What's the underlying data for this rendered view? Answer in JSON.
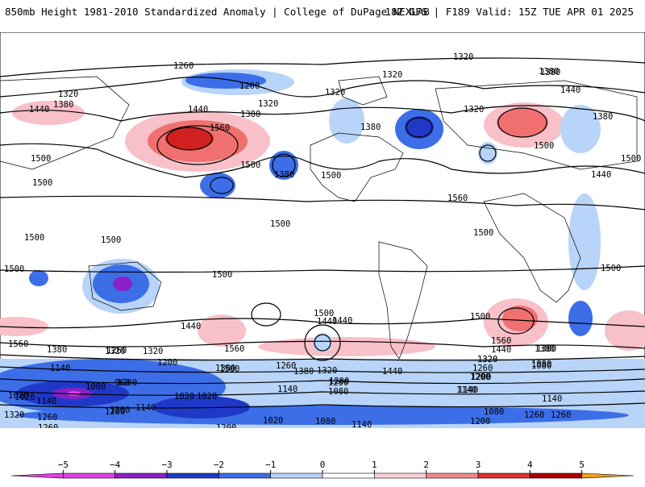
{
  "header": {
    "left": "850mb Height 1981-2010 Standardized Anomaly | College of DuPage NEXLAB",
    "right": "18Z GFS | F189 Valid: 15Z TUE APR 01 2025"
  },
  "contour_labels": [
    "1260",
    "1200",
    "1320",
    "1380",
    "1440",
    "1380",
    "1440",
    "1320",
    "1500",
    "1500",
    "1560",
    "1500",
    "1380",
    "1320",
    "1320",
    "1380",
    "1500",
    "1380",
    "1320",
    "1560",
    "1500",
    "1380",
    "1440",
    "1320",
    "1440",
    "1380",
    "1500",
    "1500",
    "1500",
    "1500",
    "1500",
    "1500",
    "1500",
    "1500",
    "1500",
    "1440",
    "1560",
    "1440",
    "1500",
    "1560",
    "1440",
    "1380",
    "1320",
    "1260",
    "1200",
    "1140",
    "1080",
    "1020",
    "960",
    "1140",
    "1200",
    "1080",
    "1140",
    "1200",
    "1260",
    "1380",
    "1320",
    "1260",
    "1200",
    "1140",
    "1080",
    "1020",
    "1080",
    "1140",
    "1200",
    "1260",
    "1320",
    "1380",
    "1440",
    "1500",
    "1560",
    "1020",
    "1020",
    "1080",
    "1200",
    "1140",
    "1080",
    "1140",
    "1200",
    "1260",
    "1020",
    "1200",
    "1320",
    "1380",
    "1440",
    "1380",
    "1320",
    "1260",
    "1200",
    "1140",
    "1200",
    "1260",
    "1320"
  ],
  "colorbar": {
    "ticks": [
      "−5",
      "−4",
      "−3",
      "−2",
      "−1",
      "0",
      "1",
      "2",
      "3",
      "4",
      "5"
    ],
    "colors": [
      "#e040e0",
      "#8a20c8",
      "#2038c8",
      "#3c6ee8",
      "#b8d4f8",
      "#ffffff",
      "#ffd0d8",
      "#f08888",
      "#e03030",
      "#b00000",
      "#f0a020"
    ]
  }
}
